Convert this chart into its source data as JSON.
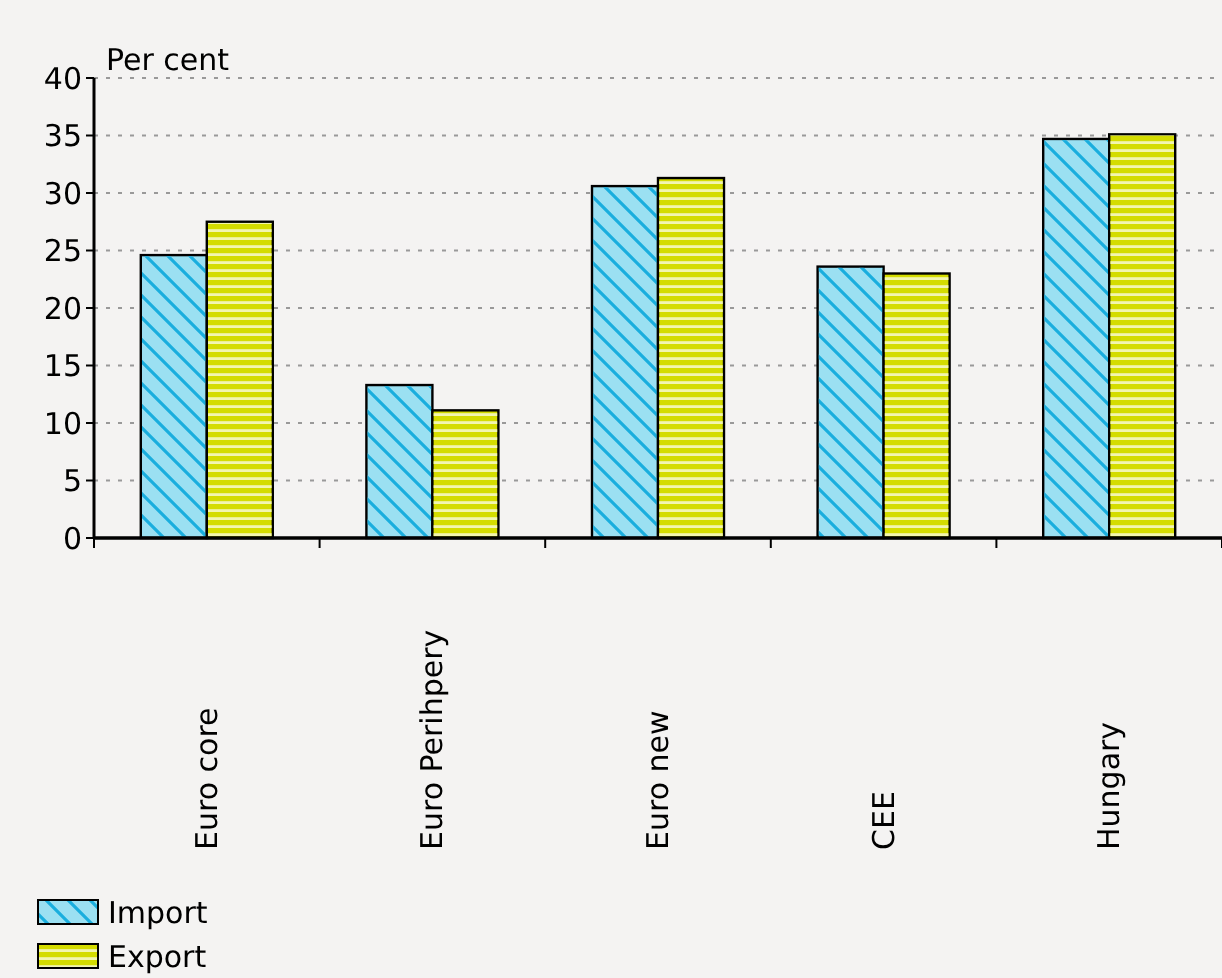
{
  "chart_data": {
    "type": "bar",
    "ylabel": "Per cent",
    "categories": [
      "Euro core",
      "Euro Perihpery",
      "Euro new",
      "CEE",
      "Hungary"
    ],
    "series": [
      {
        "name": "Import",
        "color": "#9be0f2",
        "values": [
          24.6,
          13.3,
          30.6,
          23.6,
          34.7
        ]
      },
      {
        "name": "Export",
        "color": "#d4dc00",
        "values": [
          27.5,
          11.1,
          31.3,
          23.0,
          35.1
        ]
      }
    ],
    "ylim": [
      0,
      40
    ],
    "yticks": [
      0,
      5,
      10,
      15,
      20,
      25,
      30,
      35,
      40
    ],
    "grid": "y",
    "legend": "bottom"
  }
}
